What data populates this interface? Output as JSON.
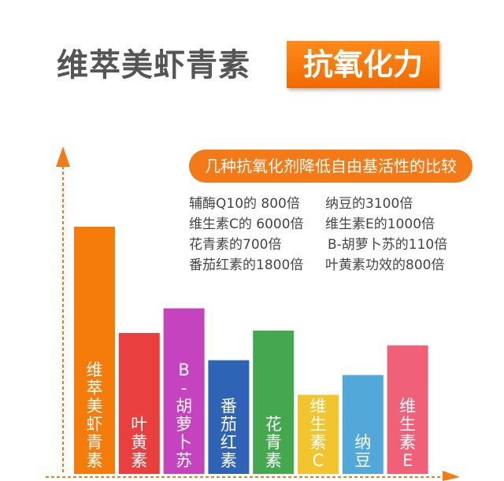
{
  "header": {
    "title": "维萃美虾青素",
    "badge": "抗氧化力",
    "accent_color": "#f47a18"
  },
  "comparison": {
    "heading": "几种抗氧化剂降低自由基活性的比较",
    "facts": [
      "辅酶Q10的 800倍",
      "纳豆的3100倍",
      "维生素C的 6000倍",
      "维生素E的1000倍",
      "花青素的700倍",
      "B-胡萝卜苏的110倍",
      "番茄红素的1800倍",
      "叶黄素功效的800倍"
    ]
  },
  "chart_data": {
    "type": "bar",
    "categories": [
      "维萃美虾青素",
      "叶黄素",
      "B-胡萝卜苏",
      "番茄红素",
      "花青素",
      "维生素C",
      "纳豆",
      "维生素E"
    ],
    "values": [
      100,
      57,
      67,
      46,
      58,
      32,
      40,
      52
    ],
    "colors": [
      "#f57c0a",
      "#e9403f",
      "#c543bf",
      "#2f63b5",
      "#44a84e",
      "#f2c52e",
      "#52a8d9",
      "#f06078"
    ],
    "grid": false,
    "legend": "none"
  }
}
